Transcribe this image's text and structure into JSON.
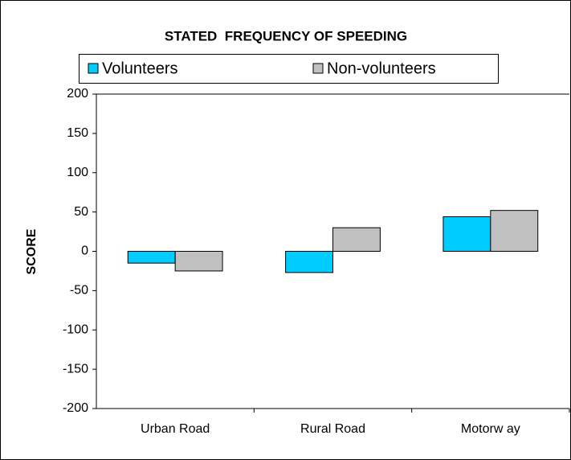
{
  "chart_data": {
    "type": "bar",
    "title": "STATED  FREQUENCY OF SPEEDING",
    "y_label": "SCORE",
    "categories": [
      "Urban Road",
      "Rural Road",
      "Motorw ay"
    ],
    "series": [
      {
        "name": "Volunteers",
        "color": "#00ccff",
        "values": [
          -15,
          -27,
          44
        ]
      },
      {
        "name": "Non-volunteers",
        "color": "#c0c0c0",
        "values": [
          -25,
          30,
          52
        ]
      }
    ],
    "ylim": [
      -200,
      200
    ],
    "yticks": [
      -200,
      -150,
      -100,
      -50,
      0,
      50,
      100,
      150,
      200
    ],
    "grid": false,
    "legend": "top"
  }
}
